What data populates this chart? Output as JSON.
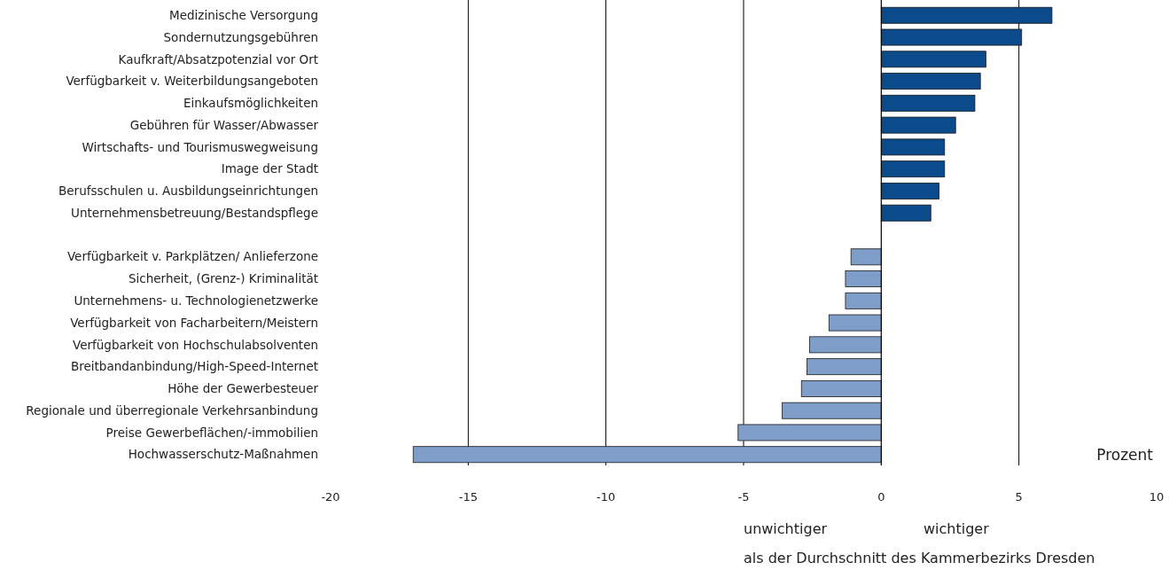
{
  "chart_data": {
    "type": "bar",
    "orientation": "horizontal",
    "xlabel": "Prozent",
    "categories": [
      "Medizinische Versorgung",
      "Sondernutzungsgebühren",
      "Kaufkraft/Absatzpotenzial vor Ort",
      "Verfügbarkeit v. Weiterbildungsangeboten",
      "Einkaufsmöglichkeiten",
      "Gebühren für Wasser/Abwasser",
      "Wirtschafts- und Tourismuswegweisung",
      "Image der Stadt",
      "Berufsschulen u. Ausbildungseinrichtungen",
      "Unternehmensbetreuung/Bestandspflege",
      null,
      "Verfügbarkeit v. Parkplätzen/ Anlieferzone",
      "Sicherheit, (Grenz-) Kriminalität",
      "Unternehmens- u. Technologienetzwerke",
      "Verfügbarkeit von Facharbeitern/Meistern",
      "Verfügbarkeit von Hochschulabsolventen",
      "Breitbandanbindung/High-Speed-Internet",
      "Höhe der Gewerbesteuer",
      "Regionale und überregionale Verkehrsanbindung",
      "Preise Gewerbeflächen/-immobilien",
      "Hochwasserschutz-Maßnahmen"
    ],
    "values": [
      6.2,
      5.1,
      3.8,
      3.6,
      3.4,
      2.7,
      2.3,
      2.3,
      2.1,
      1.8,
      null,
      -1.1,
      -1.3,
      -1.3,
      -1.9,
      -2.6,
      -2.7,
      -2.9,
      -3.6,
      -5.2,
      -17.0
    ],
    "colors": [
      "#0b4a8b",
      "#0b4a8b",
      "#0b4a8b",
      "#0b4a8b",
      "#0b4a8b",
      "#0b4a8b",
      "#0b4a8b",
      "#0b4a8b",
      "#0b4a8b",
      "#0b4a8b",
      null,
      "#7f9dc9",
      "#7f9dc9",
      "#7f9dc9",
      "#7f9dc9",
      "#7f9dc9",
      "#7f9dc9",
      "#7f9dc9",
      "#7f9dc9",
      "#7f9dc9",
      "#7f9dc9"
    ],
    "xlim": [
      -20,
      10
    ],
    "xticks": [
      -20,
      -15,
      -10,
      -5,
      0,
      5,
      10
    ],
    "grid": "x",
    "annotations": [
      "unwichtiger",
      "wichtiger",
      "als der Durchschnitt des Kammerbezirks Dresden"
    ]
  }
}
